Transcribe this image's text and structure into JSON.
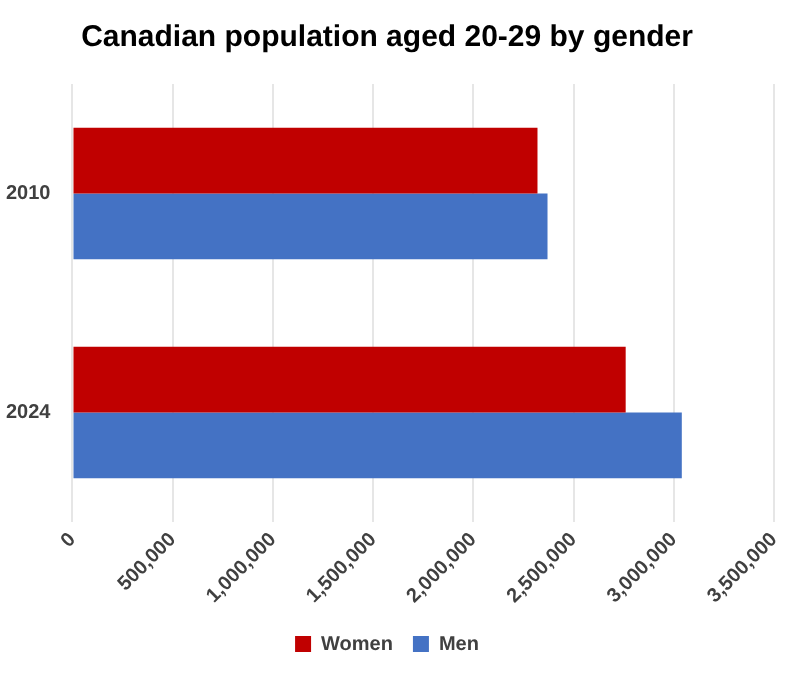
{
  "chart_data": {
    "type": "bar",
    "orientation": "horizontal",
    "title": "Canadian population aged 20-29 by gender",
    "categories": [
      "2010",
      "2024"
    ],
    "series": [
      {
        "name": "Women",
        "color": "#c00000",
        "values": [
          2320000,
          2760000
        ]
      },
      {
        "name": "Men",
        "color": "#4472c4",
        "values": [
          2370000,
          3040000
        ]
      }
    ],
    "xlim": [
      0,
      3500000
    ],
    "xticks": [
      {
        "value": 0,
        "label": "0"
      },
      {
        "value": 500000,
        "label": "500,000"
      },
      {
        "value": 1000000,
        "label": "1,000,000"
      },
      {
        "value": 1500000,
        "label": "1,500,000"
      },
      {
        "value": 2000000,
        "label": "2,000,000"
      },
      {
        "value": 2500000,
        "label": "2,500,000"
      },
      {
        "value": 3000000,
        "label": "3,000,000"
      },
      {
        "value": 3500000,
        "label": "3,500,000"
      }
    ],
    "grid": "x",
    "legend": "bottom"
  }
}
